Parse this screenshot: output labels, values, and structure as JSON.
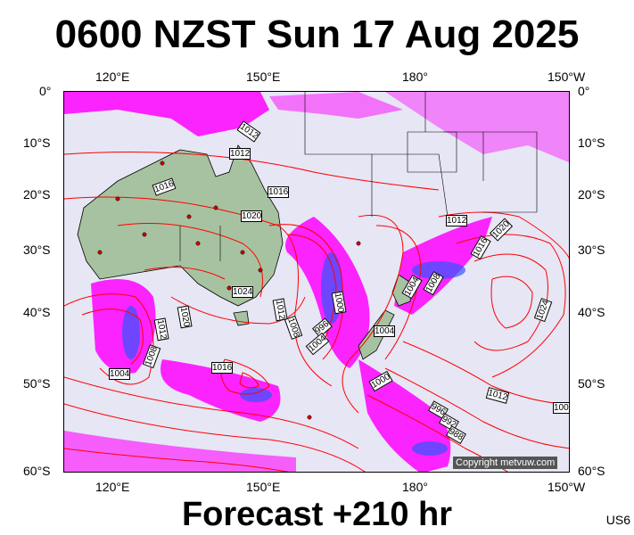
{
  "title": "0600 NZST Sun 17 Aug 2025",
  "subtitle": "Forecast +210 hr",
  "code": "US6",
  "copyright": "Copyright metvuw.com",
  "axes": {
    "top_lon": [
      "120°E",
      "150°E",
      "180°",
      "150°W"
    ],
    "bottom_lon": [
      "120°E",
      "150°E",
      "180°",
      "150°W"
    ],
    "left_lat": [
      "0°",
      "10°S",
      "20°S",
      "30°S",
      "40°S",
      "50°S",
      "60°S"
    ],
    "right_lat": [
      "0°",
      "10°S",
      "20°S",
      "30°S",
      "40°S",
      "50°S",
      "60°S"
    ]
  },
  "isobar_labels": [
    "1012",
    "1012",
    "1016",
    "1016",
    "1020",
    "1012",
    "1020",
    "1016",
    "1024",
    "1012",
    "1008",
    "1000",
    "996",
    "1004",
    "1004",
    "1008",
    "1004",
    "1024",
    "1020",
    "1012",
    "1008",
    "1004",
    "1016",
    "1000",
    "1012",
    "996",
    "992",
    "988",
    "100"
  ],
  "colors": {
    "isobar": "#ff0000",
    "precip_magenta": "#ff00ff",
    "precip_blue": "#3355ff",
    "land": "#a7c2a0",
    "sea": "#e6e6f5"
  }
}
